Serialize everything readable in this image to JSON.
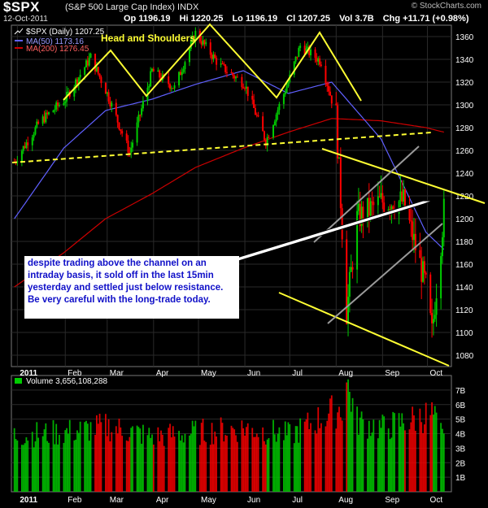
{
  "header": {
    "symbol": "$SPX",
    "name": "(S&P 500 Large Cap Index)",
    "exchange": "INDX",
    "date": "12-Oct-2011",
    "open": "Op 1196.19",
    "high": "Hi 1220.25",
    "low": "Lo 1196.19",
    "close": "Cl 1207.25",
    "volume": "Vol 3.7B",
    "change": "Chg +11.71 (+0.98%)",
    "source": "© StockCharts.com"
  },
  "legend": {
    "price": "$SPX (Daily) 1207.25",
    "ma50": "MA(50) 1173.16",
    "ma200": "MA(200) 1276.45",
    "volume": "Volume 3,656,108,288"
  },
  "annotations": {
    "pattern": "Head and Shoulders",
    "note": "despite trading above the channel on an intraday basis, it sold off in the last 15min yesterday and settled just below resistance. Be very careful with the long-trade today."
  },
  "colors": {
    "up": "#00cc00",
    "down": "#ff0000",
    "ma50": "#6060ff",
    "ma200": "#cc0000",
    "trendline": "#ffff33",
    "channel": "#9a9a9a",
    "background": "#000000",
    "note_text": "#1010c8"
  },
  "chart_data": [
    {
      "type": "line",
      "title": "$SPX (Daily) 1207.25",
      "price_axis": {
        "ylim": [
          1070,
          1370
        ],
        "ticks": [
          1080,
          1100,
          1120,
          1140,
          1160,
          1180,
          1200,
          1220,
          1240,
          1260,
          1280,
          1300,
          1320,
          1340,
          1360
        ]
      },
      "x_axis": {
        "ticks": [
          "2011",
          "Feb",
          "Mar",
          "Apr",
          "May",
          "Jun",
          "Jul",
          "Aug",
          "Sep",
          "Oct"
        ]
      },
      "series": [
        {
          "name": "$SPX (Daily) 1207.25",
          "x": [
            "2010-12-29",
            "2011-01-15",
            "2011-02-01",
            "2011-02-18",
            "2011-03-01",
            "2011-03-16",
            "2011-03-31",
            "2011-04-15",
            "2011-04-29",
            "2011-05-15",
            "2011-06-01",
            "2011-06-15",
            "2011-06-30",
            "2011-07-08",
            "2011-07-22",
            "2011-08-01",
            "2011-08-08",
            "2011-08-15",
            "2011-08-31",
            "2011-09-15",
            "2011-09-30",
            "2011-10-04",
            "2011-10-12"
          ],
          "values": [
            1250,
            1285,
            1305,
            1342,
            1310,
            1258,
            1330,
            1315,
            1363,
            1335,
            1318,
            1268,
            1320,
            1352,
            1338,
            1290,
            1118,
            1200,
            1215,
            1215,
            1140,
            1099,
            1207
          ]
        },
        {
          "name": "MA(50) 1173.16",
          "x": [
            "2010-12-29",
            "2011-01-31",
            "2011-02-28",
            "2011-03-31",
            "2011-04-29",
            "2011-05-31",
            "2011-06-30",
            "2011-07-29",
            "2011-08-31",
            "2011-09-30",
            "2011-10-12"
          ],
          "values": [
            1200,
            1262,
            1295,
            1305,
            1318,
            1330,
            1310,
            1320,
            1270,
            1188,
            1173
          ]
        },
        {
          "name": "MA(200) 1276.45",
          "x": [
            "2010-12-29",
            "2011-01-31",
            "2011-02-28",
            "2011-03-31",
            "2011-04-29",
            "2011-05-31",
            "2011-06-30",
            "2011-07-29",
            "2011-08-31",
            "2011-09-30",
            "2011-10-12"
          ],
          "values": [
            1140,
            1170,
            1200,
            1222,
            1245,
            1262,
            1276,
            1288,
            1286,
            1280,
            1276
          ]
        }
      ]
    },
    {
      "type": "bar",
      "title": "Volume 3,656,108,288",
      "y_axis": {
        "ylim": [
          0,
          8
        ],
        "ticks": [
          "1B",
          "2B",
          "3B",
          "4B",
          "5B",
          "6B",
          "7B"
        ]
      },
      "x": [
        "2011-01",
        "2011-02",
        "2011-03",
        "2011-04",
        "2011-05",
        "2011-06",
        "2011-07",
        "2011-08-05",
        "2011-08-08",
        "2011-08-15",
        "2011-09",
        "2011-10-04",
        "2011-10-12"
      ],
      "values": [
        4.0,
        4.2,
        4.6,
        3.9,
        4.2,
        4.5,
        4.0,
        6.0,
        7.8,
        5.0,
        4.5,
        5.5,
        3.66
      ]
    }
  ]
}
